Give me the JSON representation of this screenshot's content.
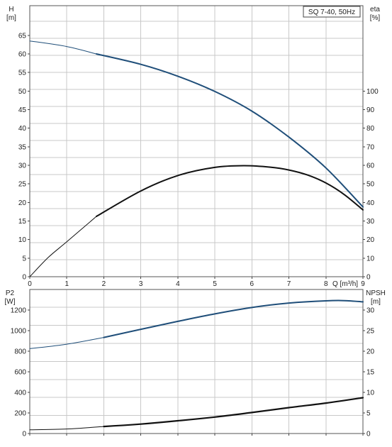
{
  "chart_data": [
    {
      "type": "line",
      "title": "SQ 7-40, 50Hz",
      "xlabel": "Q [m³/h]",
      "x_ticks": [
        "0",
        "1",
        "2",
        "3",
        "4",
        "5",
        "6",
        "7",
        "8",
        "9"
      ],
      "xlim": [
        0,
        9
      ],
      "left_axis": {
        "label_line1": "H",
        "label_line2": "[m]",
        "ylim": [
          0,
          73
        ],
        "ticks": [
          "0",
          "5",
          "10",
          "15",
          "20",
          "25",
          "30",
          "35",
          "40",
          "45",
          "50",
          "55",
          "60",
          "65"
        ]
      },
      "right_axis": {
        "label_line1": "eta",
        "label_line2": "[%]",
        "ylim": [
          0,
          146
        ],
        "ticks": [
          "0",
          "10",
          "20",
          "30",
          "40",
          "50",
          "60",
          "70",
          "80",
          "90",
          "100"
        ]
      },
      "grid": true,
      "series": [
        {
          "axis": "left",
          "color": "#1f4e79",
          "x": [
            0,
            1,
            1.8,
            3,
            4,
            5,
            6,
            7,
            8,
            9
          ],
          "y": [
            63.5,
            62,
            60,
            57.2,
            54,
            49.9,
            44.6,
            37.6,
            29.3,
            18.8
          ]
        },
        {
          "axis": "right",
          "color": "#111111",
          "x": [
            0,
            0.5,
            1,
            1.8,
            3,
            4,
            5,
            5.8,
            6.5,
            7,
            7.5,
            8,
            8.5,
            9
          ],
          "y": [
            0,
            10.4,
            18.8,
            32.5,
            46.2,
            54.5,
            58.9,
            59.8,
            59,
            57.5,
            54.8,
            50.5,
            44.2,
            36
          ]
        }
      ]
    },
    {
      "type": "line",
      "xlim": [
        0,
        9
      ],
      "left_axis": {
        "label_line1": "P2",
        "label_line2": "[W]",
        "ylim": [
          0,
          1400
        ],
        "ticks": [
          "0",
          "200",
          "400",
          "600",
          "800",
          "1000",
          "1200"
        ]
      },
      "right_axis": {
        "label_line1": "NPSH",
        "label_line2": "[m]",
        "ylim": [
          0,
          35
        ],
        "ticks": [
          "0",
          "5",
          "10",
          "15",
          "20",
          "25",
          "30"
        ]
      },
      "grid": true,
      "series": [
        {
          "axis": "left",
          "color": "#1f4e79",
          "x": [
            0,
            1,
            2,
            3,
            4,
            5,
            6,
            7,
            8,
            8.5,
            9
          ],
          "y": [
            825,
            868,
            934,
            1013,
            1090,
            1163,
            1225,
            1268,
            1290,
            1292,
            1280
          ]
        },
        {
          "axis": "right",
          "color": "#111111",
          "x": [
            0,
            1,
            2,
            3,
            4,
            5,
            6,
            7,
            8,
            9
          ],
          "y": [
            0.9,
            1.1,
            1.7,
            2.3,
            3.1,
            4.0,
            5.1,
            6.3,
            7.4,
            8.7
          ]
        }
      ]
    }
  ]
}
